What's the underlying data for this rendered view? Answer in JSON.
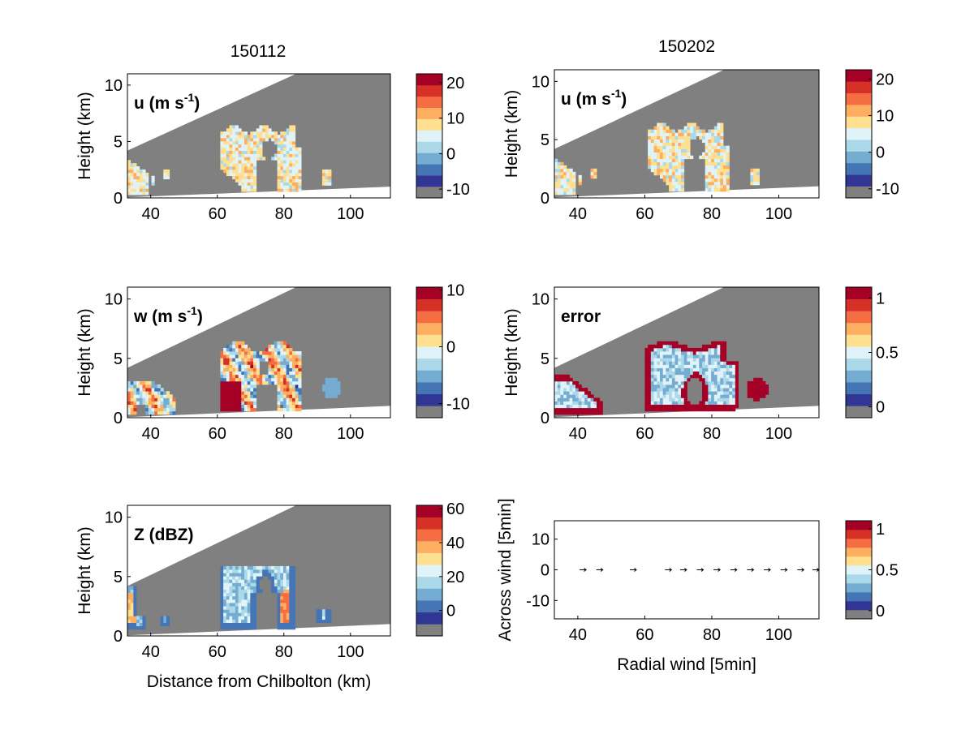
{
  "figure": {
    "col_titles": [
      "150112",
      "150202"
    ],
    "colormap": [
      "#313695",
      "#4575b4",
      "#74add1",
      "#abd9e9",
      "#e0f3f8",
      "#fee090",
      "#fdae61",
      "#f46d43",
      "#d73027",
      "#a50026"
    ],
    "masked_color": "#808080",
    "common_xlabel": "Distance from Chilbolton (km)"
  },
  "chart_data": [
    {
      "id": "u-150112",
      "type": "heatmap",
      "title": "150112",
      "panel_label": "u (m s-1)",
      "panel_label_main": "u (m s",
      "panel_label_sup": "-1",
      "panel_label_tail": ")",
      "xlabel": "",
      "ylabel": "Height (km)",
      "xlim": [
        33,
        112
      ],
      "ylim": [
        0,
        11
      ],
      "xticks": [
        "40",
        "60",
        "80",
        "100"
      ],
      "yticks": [
        "0",
        "5",
        "10"
      ],
      "colorbar": {
        "ticks": [
          "-10",
          "0",
          "10",
          "20"
        ],
        "range": [
          -12.5,
          22.5
        ]
      },
      "field": "u"
    },
    {
      "id": "u-150202",
      "type": "heatmap",
      "title": "150202",
      "panel_label": "u (m s-1)",
      "panel_label_main": "u (m s",
      "panel_label_sup": "-1",
      "panel_label_tail": ")",
      "xlabel": "",
      "ylabel": "Height (km)",
      "xlim": [
        33,
        112
      ],
      "ylim": [
        0,
        11
      ],
      "xticks": [
        "40",
        "60",
        "80",
        "100"
      ],
      "yticks": [
        "0",
        "5",
        "10"
      ],
      "colorbar": {
        "ticks": [
          "-10",
          "0",
          "10",
          "20"
        ],
        "range": [
          -12.5,
          22.5
        ]
      },
      "field": "u"
    },
    {
      "id": "w-150112",
      "type": "heatmap",
      "panel_label": "w (m s-1)",
      "panel_label_main": "w (m s",
      "panel_label_sup": "-1",
      "panel_label_tail": ")",
      "xlabel": "",
      "ylabel": "Height (km)",
      "xlim": [
        33,
        112
      ],
      "ylim": [
        0,
        11
      ],
      "xticks": [
        "40",
        "60",
        "80",
        "100"
      ],
      "yticks": [
        "0",
        "5",
        "10"
      ],
      "colorbar": {
        "ticks": [
          "-10",
          "0",
          "10"
        ],
        "range": [
          -12.5,
          10.5
        ]
      },
      "field": "w"
    },
    {
      "id": "error-150202",
      "type": "heatmap",
      "panel_label": "error",
      "panel_label_main": "error",
      "panel_label_sup": "",
      "panel_label_tail": "",
      "xlabel": "",
      "ylabel": "Height (km)",
      "xlim": [
        33,
        112
      ],
      "ylim": [
        0,
        11
      ],
      "xticks": [
        "40",
        "60",
        "80",
        "100"
      ],
      "yticks": [
        "0",
        "5",
        "10"
      ],
      "colorbar": {
        "ticks": [
          "0",
          "0.5",
          "1"
        ],
        "range": [
          -0.1,
          1.1
        ]
      },
      "field": "error"
    },
    {
      "id": "z-150112",
      "type": "heatmap",
      "panel_label": "Z (dBZ)",
      "panel_label_main": "Z (dBZ)",
      "panel_label_sup": "",
      "panel_label_tail": "",
      "xlabel": "Distance from Chilbolton (km)",
      "ylabel": "Height (km)",
      "xlim": [
        33,
        112
      ],
      "ylim": [
        0,
        11
      ],
      "xticks": [
        "40",
        "60",
        "80",
        "100"
      ],
      "yticks": [
        "0",
        "5",
        "10"
      ],
      "colorbar": {
        "ticks": [
          "0",
          "20",
          "40",
          "60"
        ],
        "range": [
          -15,
          62
        ]
      },
      "field": "z"
    },
    {
      "id": "wind-vectors",
      "type": "scatter",
      "xlabel": "Radial wind [5min]",
      "ylabel": "Across wind [5min]",
      "xlim": [
        33,
        112
      ],
      "ylim": [
        -16,
        16
      ],
      "xticks": [
        "40",
        "60",
        "80",
        "100"
      ],
      "yticks": [
        "-10",
        "0",
        "10"
      ],
      "colorbar": {
        "ticks": [
          "0",
          "0.5",
          "1"
        ],
        "range": [
          -0.1,
          1.1
        ]
      },
      "series": [
        {
          "x": [
            41.5,
            46.5,
            56.5,
            67,
            71.5,
            76.5,
            81.5,
            86.5,
            91.5,
            96.5,
            101.5,
            106.5,
            111
          ],
          "y": [
            0,
            0,
            0,
            0,
            0,
            0,
            0,
            0,
            0,
            0,
            0,
            0,
            0
          ]
        }
      ]
    }
  ]
}
